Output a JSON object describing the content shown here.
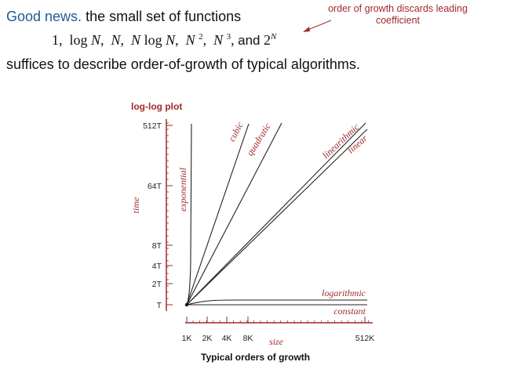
{
  "slide": {
    "lead": "Good news.",
    "lead_rest": " the small set of functions",
    "formula": {
      "one": "1,",
      "log": "log",
      "n": "N",
      "sq_exp": "2",
      "cube_exp": "3",
      "and": "and",
      "two": "2",
      "exp_exp": "N"
    },
    "line3": "suffices to describe order-of-growth of typical algorithms.",
    "note": "order of growth discards leading coefficient"
  },
  "chart_data": {
    "type": "line",
    "title": "log-log plot",
    "caption": "Typical orders of growth",
    "xlabel": "size",
    "ylabel": "time",
    "x_scale": "log",
    "y_scale": "log",
    "xticks": [
      "1K",
      "2K",
      "4K",
      "8K",
      "512K"
    ],
    "yticks": [
      "T",
      "2T",
      "4T",
      "8T",
      "64T",
      "512T"
    ],
    "series": [
      {
        "name": "exponential",
        "label": "exponential"
      },
      {
        "name": "cubic",
        "label": "cubic"
      },
      {
        "name": "quadratic",
        "label": "quadratic"
      },
      {
        "name": "linearithmic",
        "label": "linearithmic"
      },
      {
        "name": "linear",
        "label": "linear"
      },
      {
        "name": "logarithmic",
        "label": "logarithmic"
      },
      {
        "name": "constant",
        "label": "constant"
      }
    ],
    "grid": false,
    "axis_color": "#a32a2a",
    "line_color": "#222222"
  }
}
